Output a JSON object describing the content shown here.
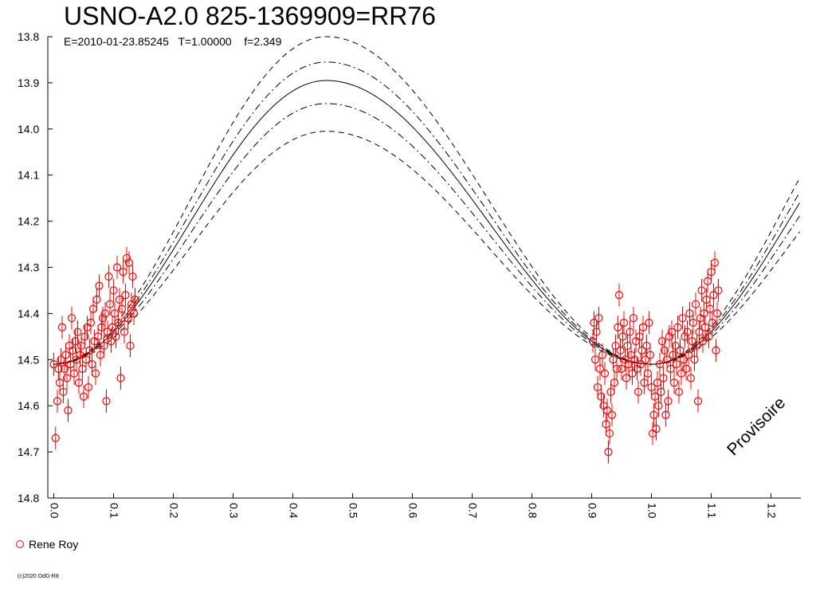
{
  "chart_data": {
    "type": "scatter",
    "title": "USNO-A2.0 825-1369909=RR76",
    "subtitle": {
      "epoch": "E=2010-01-23.85245",
      "period": "T=1.00000",
      "f": "f=2.349"
    },
    "xlabel": "",
    "ylabel": "",
    "xlim": [
      -0.01,
      1.25
    ],
    "ylim": [
      14.8,
      13.8
    ],
    "y_inverted": true,
    "x_ticks": [
      "0.0",
      "0.1",
      "0.2",
      "0.3",
      "0.4",
      "0.5",
      "0.6",
      "0.7",
      "0.8",
      "0.9",
      "1.0",
      "1.1",
      "1.2"
    ],
    "y_ticks": [
      "13.8",
      "13.9",
      "14.0",
      "14.1",
      "14.2",
      "14.3",
      "14.4",
      "14.5",
      "14.6",
      "14.7",
      "14.8"
    ],
    "model": {
      "min_phase": 0.0,
      "max_phase": 0.456,
      "min_mag": 14.51,
      "max_mag": 13.895,
      "envelopes": [
        {
          "style": "dashed",
          "max_mag": 13.8
        },
        {
          "style": "dashdot",
          "max_mag": 13.855
        },
        {
          "style": "solid",
          "max_mag": 13.895
        },
        {
          "style": "dashdot",
          "max_mag": 13.945
        },
        {
          "style": "dashed",
          "max_mag": 14.005
        }
      ]
    },
    "series": [
      {
        "name": "Rene Roy",
        "color": "#ff0000",
        "marker": "circle-open",
        "points": [
          [
            0.0,
            14.51
          ],
          [
            0.003,
            14.67
          ],
          [
            0.006,
            14.59
          ],
          [
            0.008,
            14.52
          ],
          [
            0.01,
            14.55
          ],
          [
            0.012,
            14.5
          ],
          [
            0.014,
            14.43
          ],
          [
            0.016,
            14.57
          ],
          [
            0.018,
            14.52
          ],
          [
            0.02,
            14.49
          ],
          [
            0.022,
            14.54
          ],
          [
            0.024,
            14.61
          ],
          [
            0.026,
            14.47
          ],
          [
            0.028,
            14.51
          ],
          [
            0.03,
            14.41
          ],
          [
            0.032,
            14.48
          ],
          [
            0.034,
            14.53
          ],
          [
            0.036,
            14.46
          ],
          [
            0.038,
            14.5
          ],
          [
            0.04,
            14.44
          ],
          [
            0.042,
            14.55
          ],
          [
            0.044,
            14.49
          ],
          [
            0.046,
            14.47
          ],
          [
            0.048,
            14.52
          ],
          [
            0.05,
            14.58
          ],
          [
            0.052,
            14.45
          ],
          [
            0.054,
            14.5
          ],
          [
            0.056,
            14.43
          ],
          [
            0.058,
            14.56
          ],
          [
            0.06,
            14.48
          ],
          [
            0.062,
            14.42
          ],
          [
            0.064,
            14.51
          ],
          [
            0.066,
            14.39
          ],
          [
            0.068,
            14.46
          ],
          [
            0.07,
            14.53
          ],
          [
            0.072,
            14.37
          ],
          [
            0.074,
            14.45
          ],
          [
            0.076,
            14.34
          ],
          [
            0.078,
            14.49
          ],
          [
            0.08,
            14.43
          ],
          [
            0.082,
            14.41
          ],
          [
            0.084,
            14.47
          ],
          [
            0.086,
            14.4
          ],
          [
            0.088,
            14.59
          ],
          [
            0.09,
            14.44
          ],
          [
            0.092,
            14.32
          ],
          [
            0.094,
            14.38
          ],
          [
            0.096,
            14.46
          ],
          [
            0.098,
            14.43
          ],
          [
            0.1,
            14.35
          ],
          [
            0.102,
            14.4
          ],
          [
            0.104,
            14.45
          ],
          [
            0.106,
            14.3
          ],
          [
            0.108,
            14.42
          ],
          [
            0.11,
            14.37
          ],
          [
            0.112,
            14.54
          ],
          [
            0.114,
            14.39
          ],
          [
            0.116,
            14.31
          ],
          [
            0.118,
            14.44
          ],
          [
            0.12,
            14.36
          ],
          [
            0.122,
            14.28
          ],
          [
            0.124,
            14.41
          ],
          [
            0.126,
            14.29
          ],
          [
            0.128,
            14.47
          ],
          [
            0.13,
            14.38
          ],
          [
            0.132,
            14.32
          ],
          [
            0.134,
            14.4
          ],
          [
            0.136,
            14.37
          ],
          [
            0.902,
            14.46
          ],
          [
            0.904,
            14.42
          ],
          [
            0.906,
            14.5
          ],
          [
            0.908,
            14.44
          ],
          [
            0.91,
            14.56
          ],
          [
            0.912,
            14.41
          ],
          [
            0.914,
            14.52
          ],
          [
            0.916,
            14.58
          ],
          [
            0.918,
            14.49
          ],
          [
            0.92,
            14.6
          ],
          [
            0.922,
            14.53
          ],
          [
            0.924,
            14.64
          ],
          [
            0.926,
            14.61
          ],
          [
            0.928,
            14.7
          ],
          [
            0.93,
            14.66
          ],
          [
            0.932,
            14.57
          ],
          [
            0.934,
            14.62
          ],
          [
            0.936,
            14.5
          ],
          [
            0.938,
            14.55
          ],
          [
            0.94,
            14.47
          ],
          [
            0.942,
            14.52
          ],
          [
            0.944,
            14.43
          ],
          [
            0.946,
            14.36
          ],
          [
            0.948,
            14.48
          ],
          [
            0.95,
            14.52
          ],
          [
            0.952,
            14.45
          ],
          [
            0.954,
            14.42
          ],
          [
            0.956,
            14.5
          ],
          [
            0.958,
            14.54
          ],
          [
            0.96,
            14.47
          ],
          [
            0.962,
            14.51
          ],
          [
            0.964,
            14.44
          ],
          [
            0.966,
            14.49
          ],
          [
            0.968,
            14.53
          ],
          [
            0.97,
            14.41
          ],
          [
            0.972,
            14.5
          ],
          [
            0.974,
            14.46
          ],
          [
            0.976,
            14.52
          ],
          [
            0.978,
            14.57
          ],
          [
            0.98,
            14.45
          ],
          [
            0.982,
            14.51
          ],
          [
            0.984,
            14.48
          ],
          [
            0.986,
            14.43
          ],
          [
            0.988,
            14.55
          ],
          [
            0.99,
            14.5
          ],
          [
            0.992,
            14.47
          ],
          [
            0.994,
            14.53
          ],
          [
            0.996,
            14.42
          ],
          [
            0.998,
            14.49
          ],
          [
            1.0,
            14.56
          ],
          [
            1.002,
            14.66
          ],
          [
            1.004,
            14.62
          ],
          [
            1.006,
            14.58
          ],
          [
            1.008,
            14.65
          ],
          [
            1.01,
            14.55
          ],
          [
            1.012,
            14.6
          ],
          [
            1.014,
            14.51
          ],
          [
            1.016,
            14.57
          ],
          [
            1.018,
            14.46
          ],
          [
            1.02,
            14.54
          ],
          [
            1.022,
            14.48
          ],
          [
            1.024,
            14.62
          ],
          [
            1.026,
            14.5
          ],
          [
            1.028,
            14.59
          ],
          [
            1.03,
            14.45
          ],
          [
            1.032,
            14.52
          ],
          [
            1.034,
            14.44
          ],
          [
            1.036,
            14.49
          ],
          [
            1.038,
            14.55
          ],
          [
            1.04,
            14.47
          ],
          [
            1.042,
            14.51
          ],
          [
            1.044,
            14.43
          ],
          [
            1.046,
            14.57
          ],
          [
            1.048,
            14.48
          ],
          [
            1.05,
            14.53
          ],
          [
            1.052,
            14.41
          ],
          [
            1.054,
            14.5
          ],
          [
            1.056,
            14.45
          ],
          [
            1.058,
            14.52
          ],
          [
            1.06,
            14.44
          ],
          [
            1.062,
            14.49
          ],
          [
            1.064,
            14.4
          ],
          [
            1.066,
            14.54
          ],
          [
            1.068,
            14.46
          ],
          [
            1.07,
            14.42
          ],
          [
            1.072,
            14.5
          ],
          [
            1.074,
            14.38
          ],
          [
            1.076,
            14.47
          ],
          [
            1.078,
            14.59
          ],
          [
            1.08,
            14.44
          ],
          [
            1.082,
            14.41
          ],
          [
            1.084,
            14.35
          ],
          [
            1.086,
            14.46
          ],
          [
            1.088,
            14.4
          ],
          [
            1.09,
            14.43
          ],
          [
            1.092,
            14.37
          ],
          [
            1.094,
            14.33
          ],
          [
            1.096,
            14.45
          ],
          [
            1.098,
            14.39
          ],
          [
            1.1,
            14.31
          ],
          [
            1.102,
            14.42
          ],
          [
            1.104,
            14.36
          ],
          [
            1.106,
            14.29
          ],
          [
            1.108,
            14.48
          ],
          [
            1.11,
            14.4
          ],
          [
            1.112,
            14.35
          ]
        ],
        "error": 0.025
      }
    ]
  },
  "legend": {
    "label": "Rene Roy"
  },
  "copyright": "(c)2020 OdG-R8",
  "watermark": "Provisoire"
}
